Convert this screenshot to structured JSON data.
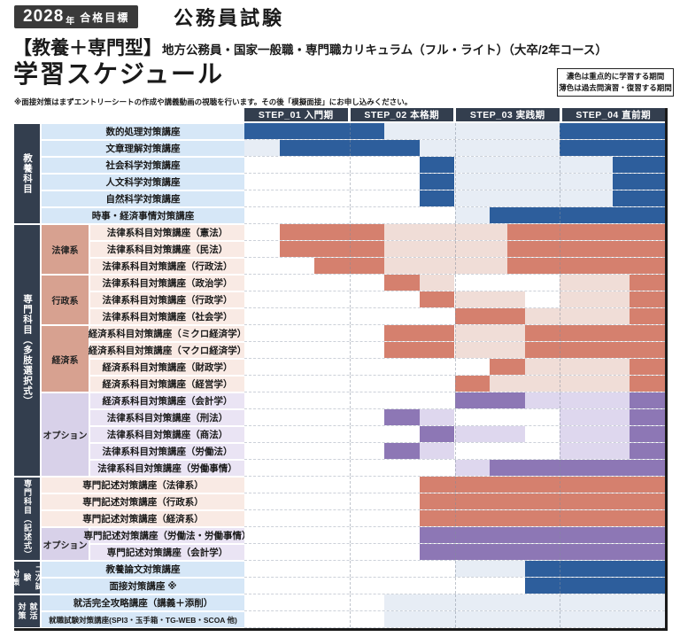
{
  "header": {
    "badge_year": "2028",
    "badge_year_suffix": "年",
    "badge_label": "合格目標",
    "exam": "公務員試験",
    "course_type": "【教養＋専門型】",
    "course_desc": "地方公務員・国家一般職・専門職カリキュラム（フル・ライト）（大卒/2年コース）",
    "title": "学習スケジュール",
    "note": "※面接対策はまずエントリーシートの作成や講義動画の視聴を行います。その後「模擬面接」にお申し込みください。",
    "legend_dark": "濃色は重点的に学習する期間",
    "legend_light": "薄色は過去問演習・復習する期間"
  },
  "colors": {
    "navy": "#333e4e",
    "schemes": {
      "blue": {
        "dark": "#2d5e9c",
        "light": "#e7edf5",
        "label": "#d6e7f7",
        "sub": "#d6e7f7"
      },
      "salmon": {
        "dark": "#d5806e",
        "light": "#f0ddd7",
        "label": "#f9eae4",
        "sub": "#d7a190"
      },
      "purple": {
        "dark": "#8d77b5",
        "light": "#ded7ee",
        "label": "#eae4f4",
        "sub": "#d8d1e9"
      }
    }
  },
  "chart_data": {
    "type": "gantt",
    "title": "学習スケジュール",
    "timeline_unit": "percent of 4 steps (0-100)",
    "legend_position": "top-right",
    "steps": [
      {
        "label": "STEP_01 入門期"
      },
      {
        "label": "STEP_02 本格期"
      },
      {
        "label": "STEP_03 実践期"
      },
      {
        "label": "STEP_04 直前期"
      }
    ],
    "groups": [
      {
        "label": "教養科目",
        "vertical": [
          "教養科目"
        ],
        "vfs": 10.5,
        "subgroups": [
          {
            "label": null,
            "scheme": "blue",
            "rows": [
              {
                "label": "数的処理対策講座",
                "segments": [
                  [
                    0,
                    33.33,
                    "d"
                  ],
                  [
                    33.33,
                    75,
                    "l"
                  ],
                  [
                    75,
                    100,
                    "d"
                  ]
                ]
              },
              {
                "label": "文章理解対策講座",
                "segments": [
                  [
                    0,
                    8.33,
                    "l"
                  ],
                  [
                    8.33,
                    41.67,
                    "d"
                  ],
                  [
                    41.67,
                    75,
                    "l"
                  ],
                  [
                    75,
                    100,
                    "d"
                  ]
                ]
              },
              {
                "label": "社会科学対策講座",
                "segments": [
                  [
                    41.67,
                    50,
                    "d"
                  ],
                  [
                    50,
                    87.5,
                    "l"
                  ],
                  [
                    87.5,
                    100,
                    "d"
                  ]
                ]
              },
              {
                "label": "人文科学対策講座",
                "segments": [
                  [
                    41.67,
                    50,
                    "d"
                  ],
                  [
                    50,
                    87.5,
                    "l"
                  ],
                  [
                    87.5,
                    100,
                    "d"
                  ]
                ]
              },
              {
                "label": "自然科学対策講座",
                "segments": [
                  [
                    41.67,
                    50,
                    "d"
                  ],
                  [
                    50,
                    87.5,
                    "l"
                  ],
                  [
                    87.5,
                    100,
                    "d"
                  ]
                ]
              },
              {
                "label": "時事・経済事情対策講座",
                "segments": [
                  [
                    50,
                    58.33,
                    "l"
                  ],
                  [
                    58.33,
                    100,
                    "d"
                  ]
                ]
              }
            ]
          }
        ]
      },
      {
        "label": "専門科目（多肢選択式）",
        "vertical": [
          "専門科目（多肢選択式）"
        ],
        "vfs": 10.5,
        "subgroups": [
          {
            "label": "法律系",
            "scheme": "salmon",
            "rows": [
              {
                "label": "法律系科目対策講座（憲法）",
                "segments": [
                  [
                    8.33,
                    33.33,
                    "d"
                  ],
                  [
                    33.33,
                    62.5,
                    "l"
                  ],
                  [
                    62.5,
                    100,
                    "d"
                  ]
                ]
              },
              {
                "label": "法律系科目対策講座（民法）",
                "segments": [
                  [
                    8.33,
                    33.33,
                    "d"
                  ],
                  [
                    33.33,
                    62.5,
                    "l"
                  ],
                  [
                    62.5,
                    100,
                    "d"
                  ]
                ]
              },
              {
                "label": "法律系科目対策講座（行政法）",
                "segments": [
                  [
                    16.67,
                    33.33,
                    "d"
                  ],
                  [
                    33.33,
                    62.5,
                    "l"
                  ],
                  [
                    62.5,
                    100,
                    "d"
                  ]
                ]
              }
            ]
          },
          {
            "label": "行政系",
            "scheme": "salmon",
            "rows": [
              {
                "label": "法律系科目対策講座（政治学）",
                "segments": [
                  [
                    33.33,
                    41.67,
                    "d"
                  ],
                  [
                    41.67,
                    50,
                    "l"
                  ],
                  [
                    75,
                    91.67,
                    "l"
                  ],
                  [
                    91.67,
                    100,
                    "d"
                  ]
                ]
              },
              {
                "label": "法律系科目対策講座（行政学）",
                "segments": [
                  [
                    41.67,
                    50,
                    "d"
                  ],
                  [
                    50,
                    66.67,
                    "l"
                  ],
                  [
                    75,
                    91.67,
                    "l"
                  ],
                  [
                    91.67,
                    100,
                    "d"
                  ]
                ]
              },
              {
                "label": "法律系科目対策講座（社会学）",
                "segments": [
                  [
                    50,
                    66.67,
                    "d"
                  ],
                  [
                    66.67,
                    91.67,
                    "l"
                  ],
                  [
                    91.67,
                    100,
                    "d"
                  ]
                ]
              }
            ]
          },
          {
            "label": "経済系",
            "scheme": "salmon",
            "rows": [
              {
                "label": "経済系科目対策講座（ミクロ経済学）",
                "segments": [
                  [
                    33.33,
                    50,
                    "d"
                  ],
                  [
                    50,
                    66.67,
                    "l"
                  ],
                  [
                    66.67,
                    100,
                    "d"
                  ]
                ]
              },
              {
                "label": "経済系科目対策講座（マクロ経済学）",
                "segments": [
                  [
                    33.33,
                    50,
                    "d"
                  ],
                  [
                    50,
                    66.67,
                    "l"
                  ],
                  [
                    66.67,
                    100,
                    "d"
                  ]
                ]
              },
              {
                "label": "経済系科目対策講座（財政学）",
                "segments": [
                  [
                    58.33,
                    66.67,
                    "d"
                  ],
                  [
                    66.67,
                    91.67,
                    "l"
                  ],
                  [
                    91.67,
                    100,
                    "d"
                  ]
                ]
              },
              {
                "label": "経済系科目対策講座（経営学）",
                "segments": [
                  [
                    50,
                    58.33,
                    "d"
                  ],
                  [
                    58.33,
                    91.67,
                    "l"
                  ],
                  [
                    91.67,
                    100,
                    "d"
                  ]
                ]
              }
            ]
          },
          {
            "label": "オプション",
            "scheme": "purple",
            "rows": [
              {
                "label": "経済系科目対策講座（会計学）",
                "segments": [
                  [
                    50,
                    66.67,
                    "d"
                  ],
                  [
                    66.67,
                    91.67,
                    "l"
                  ],
                  [
                    91.67,
                    100,
                    "d"
                  ]
                ]
              },
              {
                "label": "法律系科目対策講座（刑法）",
                "segments": [
                  [
                    33.33,
                    41.67,
                    "d"
                  ],
                  [
                    41.67,
                    50,
                    "l"
                  ],
                  [
                    75,
                    91.67,
                    "l"
                  ],
                  [
                    91.67,
                    100,
                    "d"
                  ]
                ]
              },
              {
                "label": "法律系科目対策講座（商法）",
                "segments": [
                  [
                    41.67,
                    50,
                    "d"
                  ],
                  [
                    50,
                    66.67,
                    "l"
                  ],
                  [
                    75,
                    91.67,
                    "l"
                  ],
                  [
                    91.67,
                    100,
                    "d"
                  ]
                ]
              },
              {
                "label": "法律系科目対策講座（労働法）",
                "segments": [
                  [
                    33.33,
                    41.67,
                    "d"
                  ],
                  [
                    41.67,
                    50,
                    "l"
                  ],
                  [
                    75,
                    91.67,
                    "l"
                  ],
                  [
                    91.67,
                    100,
                    "d"
                  ]
                ]
              },
              {
                "label": "法律系科目対策講座（労働事情）",
                "segments": [
                  [
                    50,
                    58.33,
                    "l"
                  ],
                  [
                    58.33,
                    100,
                    "d"
                  ]
                ]
              }
            ]
          }
        ]
      },
      {
        "label": "専門科目（記述式）",
        "vertical": [
          "専門科目（記述式）"
        ],
        "vfs": 9,
        "subgroups": [
          {
            "label": null,
            "scheme": "salmon",
            "rows": [
              {
                "label": "専門記述対策講座（法律系）",
                "segments": [
                  [
                    41.67,
                    100,
                    "d"
                  ]
                ]
              },
              {
                "label": "専門記述対策講座（行政系）",
                "segments": [
                  [
                    41.67,
                    100,
                    "d"
                  ]
                ]
              },
              {
                "label": "専門記述対策講座（経済系）",
                "segments": [
                  [
                    41.67,
                    100,
                    "d"
                  ]
                ]
              }
            ]
          },
          {
            "label": "オプション",
            "scheme": "purple",
            "rows": [
              {
                "label": "専門記述対策講座（労働法・労働事情）",
                "segments": [
                  [
                    41.67,
                    100,
                    "d"
                  ]
                ]
              },
              {
                "label": "専門記述対策講座（会計学）",
                "segments": [
                  [
                    41.67,
                    100,
                    "d"
                  ]
                ]
              }
            ]
          }
        ]
      },
      {
        "label": "二次試験対策",
        "vertical": [
          "二次試験",
          "対策"
        ],
        "vfs": 8.5,
        "subgroups": [
          {
            "label": null,
            "scheme": "blue",
            "rows": [
              {
                "label": "教養論文対策講座",
                "segments": [
                  [
                    50,
                    66.67,
                    "l"
                  ],
                  [
                    66.67,
                    100,
                    "d"
                  ]
                ]
              },
              {
                "label": "面接対策講座 ※",
                "segments": [
                  [
                    66.67,
                    100,
                    "d"
                  ]
                ]
              }
            ]
          }
        ]
      },
      {
        "label": "就活対策",
        "vertical": [
          "就活",
          "対策"
        ],
        "vfs": 9,
        "subgroups": [
          {
            "label": null,
            "scheme": "blue",
            "rows": [
              {
                "label": "就活完全攻略講座（講義＋添削）",
                "segments": [
                  [
                    33.33,
                    100,
                    "l"
                  ]
                ]
              },
              {
                "label": "就職試験対策講座(SPI3・玉手箱・TG-WEB・SCOA 他)",
                "small": true,
                "segments": [
                  [
                    33.33,
                    100,
                    "l"
                  ]
                ]
              }
            ]
          }
        ]
      }
    ]
  }
}
